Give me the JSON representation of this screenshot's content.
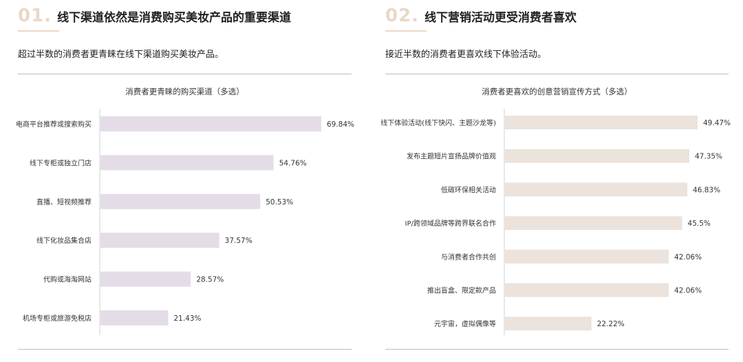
{
  "left": {
    "number": "01.",
    "title": "线下渠道依然是消费购买美妆产品的重要渠道",
    "subtitle": "超过半数的消费者更青睐在线下渠道购买美妆产品。"
  },
  "right": {
    "number": "02.",
    "title": "线下营销活动更受消费者喜欢",
    "subtitle": "接近半数的消费者更喜欢线下体验活动。"
  },
  "chart_data": [
    {
      "type": "bar",
      "orientation": "horizontal",
      "title": "消费者更青睐的购买渠道（多选）",
      "categories": [
        "电商平台推荐或搜索购买",
        "线下专柜或独立门店",
        "直播、短视频推荐",
        "线下化妆品集合店",
        "代购或海淘网站",
        "机场专柜或旅游免税店"
      ],
      "values": [
        69.84,
        54.76,
        50.53,
        37.57,
        28.57,
        21.43
      ],
      "value_labels": [
        "69.84%",
        "54.76%",
        "50.53%",
        "37.57%",
        "28.57%",
        "21.43%"
      ],
      "unit": "%",
      "xlim": [
        0,
        69.84
      ],
      "grid": false,
      "color": "#e4dde8"
    },
    {
      "type": "bar",
      "orientation": "horizontal",
      "title": "消费者更喜欢的创意营销宣传方式（多选）",
      "categories": [
        "线下体验活动(线下快闪、主题沙龙等)",
        "发布主题短片宣扬品牌价值观",
        "低碳环保相关活动",
        "IP/跨领域品牌等跨界联名合作",
        "与消费者合作共创",
        "推出盲盒、限定款产品",
        "元宇宙，虚拟偶像等"
      ],
      "values": [
        49.47,
        47.35,
        46.83,
        45.5,
        42.06,
        42.06,
        22.22
      ],
      "value_labels": [
        "49.47%",
        "47.35%",
        "46.83%",
        "45.5%",
        "42.06%",
        "42.06%",
        "22.22%"
      ],
      "unit": "%",
      "xlim": [
        0,
        49.47
      ],
      "grid": false,
      "color": "#ebe3dc"
    }
  ]
}
